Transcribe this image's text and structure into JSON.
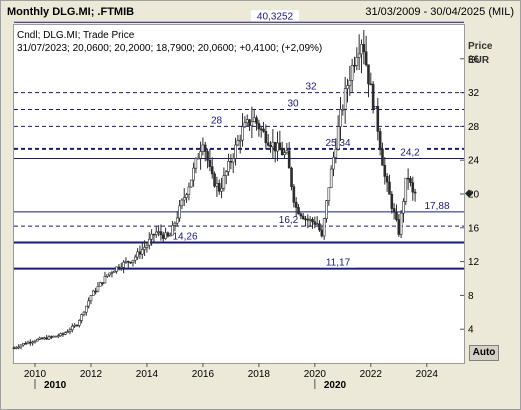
{
  "window": {
    "title": "Monthly DLG.MI; .FTMIB",
    "date_range": "31/03/2009 - 30/04/2025 (MIL)"
  },
  "legend": {
    "line1": "Cndl; DLG.MI; Trade Price",
    "line2": "31/07/2023; 20,0600; 20,2000; 18,7900; 20,0600; +0,4100; (+2,09%)"
  },
  "y_axis": {
    "title_line1": "Price",
    "title_line2": "EUR",
    "ticks": [
      "4",
      "8",
      "12",
      "16",
      "20",
      "24",
      "28",
      "32",
      "36"
    ]
  },
  "x_axis": {
    "ticks": [
      "2010",
      "2012",
      "2014",
      "2016",
      "2018",
      "2020",
      "2022",
      "2024"
    ],
    "decades": [
      "2010",
      "2020"
    ]
  },
  "auto_button": "Auto",
  "colors": {
    "candle": "#2b2b2b",
    "level_line": "#1a1a7a",
    "background": "#ffffff",
    "chrome": "#ece9d8"
  },
  "chart_data": {
    "type": "candlestick",
    "title": "Monthly DLG.MI; .FTMIB",
    "ylabel": "Price EUR",
    "ylim": [
      0,
      40
    ],
    "xlim": [
      2009.25,
      2025.33
    ],
    "current_price": 20.06,
    "levels": [
      {
        "label": "40,3252",
        "value": 40.3252,
        "style": "solid"
      },
      {
        "label": "32",
        "value": 32,
        "style": "dashed"
      },
      {
        "label": "30",
        "value": 30,
        "style": "dashed"
      },
      {
        "label": "28",
        "value": 28,
        "style": "dashed"
      },
      {
        "label": "25,34",
        "value": 25.34,
        "style": "dashed-bold"
      },
      {
        "label": "24,2",
        "value": 24.2,
        "style": "solid"
      },
      {
        "label": "17,88",
        "value": 17.88,
        "style": "solid"
      },
      {
        "label": "16,2",
        "value": 16.2,
        "style": "dashed"
      },
      {
        "label": "14,26",
        "value": 14.26,
        "style": "solid-bold"
      },
      {
        "label": "11,17",
        "value": 11.17,
        "style": "solid-bold"
      }
    ],
    "price_path": [
      [
        2009.25,
        1.8
      ],
      [
        2009.6,
        2.3
      ],
      [
        2010.0,
        2.7
      ],
      [
        2010.5,
        3.0
      ],
      [
        2011.0,
        3.4
      ],
      [
        2011.5,
        4.6
      ],
      [
        2011.8,
        6.5
      ],
      [
        2012.0,
        8.0
      ],
      [
        2012.3,
        9.2
      ],
      [
        2012.6,
        10.5
      ],
      [
        2013.0,
        11.5
      ],
      [
        2013.5,
        12.3
      ],
      [
        2014.0,
        14.0
      ],
      [
        2014.3,
        15.5
      ],
      [
        2014.8,
        14.8
      ],
      [
        2015.2,
        18.5
      ],
      [
        2015.6,
        22.0
      ],
      [
        2016.0,
        26.5
      ],
      [
        2016.3,
        22.0
      ],
      [
        2016.6,
        20.5
      ],
      [
        2017.0,
        24.0
      ],
      [
        2017.4,
        27.5
      ],
      [
        2017.8,
        29.0
      ],
      [
        2018.2,
        27.0
      ],
      [
        2018.6,
        25.5
      ],
      [
        2019.0,
        24.5
      ],
      [
        2019.3,
        18.5
      ],
      [
        2019.7,
        17.0
      ],
      [
        2020.1,
        16.5
      ],
      [
        2020.25,
        14.8
      ],
      [
        2020.5,
        21.0
      ],
      [
        2020.9,
        29.0
      ],
      [
        2021.2,
        33.5
      ],
      [
        2021.5,
        37.0
      ],
      [
        2021.7,
        38.5
      ],
      [
        2021.9,
        34.0
      ],
      [
        2022.2,
        29.0
      ],
      [
        2022.5,
        22.0
      ],
      [
        2022.8,
        18.0
      ],
      [
        2023.0,
        15.5
      ],
      [
        2023.3,
        22.5
      ],
      [
        2023.5,
        20.0
      ],
      [
        2023.6,
        20.06
      ]
    ]
  }
}
